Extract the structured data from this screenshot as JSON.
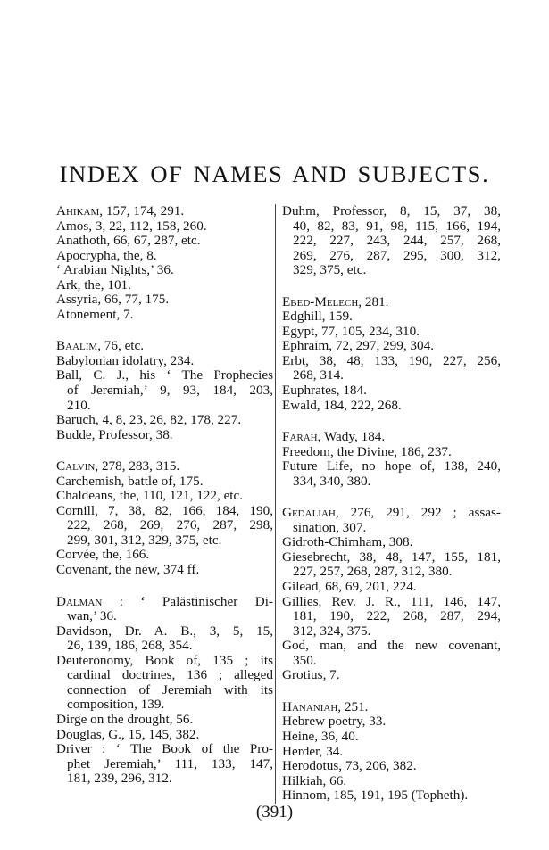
{
  "title": "INDEX OF NAMES AND SUBJECTS.",
  "page_number": "(391)",
  "columns": [
    [
      [
        {
          "lead": "Ahikam",
          "lines": [
            ", 157, 174, 291."
          ]
        },
        {
          "lines": [
            "Amos, 3, 22, 112, 158, 260."
          ]
        },
        {
          "lines": [
            "Anathoth, 66, 67, 287, etc."
          ]
        },
        {
          "lines": [
            "Apocrypha, the, 8."
          ]
        },
        {
          "lines": [
            "‘ Arabian Nights,’ 36."
          ]
        },
        {
          "lines": [
            "Ark, the, 101."
          ]
        },
        {
          "lines": [
            "Assyria, 66, 77, 175."
          ]
        },
        {
          "lines": [
            "Atonement, 7."
          ]
        }
      ],
      [
        {
          "lead": "Baalim",
          "lines": [
            ", 76, etc."
          ]
        },
        {
          "lines": [
            "Babylonian idolatry, 234."
          ]
        },
        {
          "lines": [
            "Ball, C. J., his ‘ The Prophecies",
            "of Jeremiah,’ 9, 93, 184, 203,",
            "210."
          ]
        },
        {
          "lines": [
            "Baruch, 4, 8, 23, 26, 82, 178, 227."
          ]
        },
        {
          "lines": [
            "Budde, Professor, 38."
          ]
        }
      ],
      [
        {
          "lead": "Calvin",
          "lines": [
            ", 278, 283, 315."
          ]
        },
        {
          "lines": [
            "Carchemish, battle of, 175."
          ]
        },
        {
          "lines": [
            "Chaldeans, the, 110, 121, 122, etc."
          ]
        },
        {
          "lines": [
            "Cornill, 7, 38, 82, 166, 184, 190,",
            "222, 268, 269, 276, 287, 298,",
            "299, 301, 312, 329, 375, etc."
          ]
        },
        {
          "lines": [
            "Corvée, the, 166."
          ]
        },
        {
          "lines": [
            "Covenant, the new, 374 ff."
          ]
        }
      ],
      [
        {
          "lead": "Dalman",
          "lines": [
            " :  ‘ Palästinischer  Di-",
            "wan,’ 36."
          ]
        },
        {
          "lines": [
            "Davidson, Dr. A. B., 3, 5, 15,",
            "26, 139, 186, 268, 354."
          ]
        },
        {
          "lines": [
            "Deuteronomy, Book of, 135 ; its",
            "cardinal doctrines, 136 ; alleged",
            "connection of Jeremiah with its",
            "composition, 139."
          ]
        },
        {
          "lines": [
            "Dirge on the drought, 56."
          ]
        },
        {
          "lines": [
            "Douglas, G., 15, 145, 382."
          ]
        },
        {
          "lines": [
            "Driver : ‘ The Book of the Pro-",
            "phet Jeremiah,’ 111, 133, 147,",
            "181, 239, 296, 312."
          ]
        }
      ]
    ],
    [
      [
        {
          "lines": [
            "Duhm, Professor, 8, 15, 37, 38,",
            "40, 82, 83, 91, 98, 115, 166, 194,",
            "222, 227, 243, 244, 257, 268,",
            "269, 276, 287, 295, 300, 312,",
            "329, 375, etc."
          ]
        }
      ],
      [
        {
          "lead": "Ebed-Melech",
          "lines": [
            ", 281."
          ]
        },
        {
          "lines": [
            "Edghill, 159."
          ]
        },
        {
          "lines": [
            "Egypt, 77, 105, 234, 310."
          ]
        },
        {
          "lines": [
            "Ephraim, 72, 297, 299, 304."
          ]
        },
        {
          "lines": [
            "Erbt, 38, 48, 133, 190, 227, 256,",
            "268, 314."
          ]
        },
        {
          "lines": [
            "Euphrates, 184."
          ]
        },
        {
          "lines": [
            "Ewald, 184, 222, 268."
          ]
        }
      ],
      [
        {
          "lead": "Farah",
          "lines": [
            ", Wady, 184."
          ]
        },
        {
          "lines": [
            "Freedom, the Divine, 186, 237."
          ]
        },
        {
          "lines": [
            "Future Life, no hope of, 138, 240,",
            "334, 340, 380."
          ]
        }
      ],
      [
        {
          "lead": "Gedaliah",
          "lines": [
            ", 276, 291, 292 ; assas-",
            "sination, 307."
          ]
        },
        {
          "lines": [
            "Gidroth-Chimham, 308."
          ]
        },
        {
          "lines": [
            "Giesebrecht, 38, 48, 147, 155, 181,",
            "227, 257, 268, 287, 312, 380."
          ]
        },
        {
          "lines": [
            "Gilead, 68, 69, 201, 224."
          ]
        },
        {
          "lines": [
            "Gillies, Rev. J. R., 111, 146, 147,",
            "181, 190, 222, 268, 287, 294,",
            "312, 324, 375."
          ]
        },
        {
          "lines": [
            "God, man, and the new covenant,",
            "350."
          ]
        },
        {
          "lines": [
            "Grotius, 7."
          ]
        }
      ],
      [
        {
          "lead": "Hananiah",
          "lines": [
            ", 251."
          ]
        },
        {
          "lines": [
            "Hebrew poetry, 33."
          ]
        },
        {
          "lines": [
            "Heine, 36, 40."
          ]
        },
        {
          "lines": [
            "Herder, 34."
          ]
        },
        {
          "lines": [
            "Herodotus, 73, 206, 382."
          ]
        },
        {
          "lines": [
            "Hilkiah, 66."
          ]
        },
        {
          "lines": [
            "Hinnom, 185, 191, 195 (Topheth)."
          ]
        }
      ]
    ]
  ]
}
